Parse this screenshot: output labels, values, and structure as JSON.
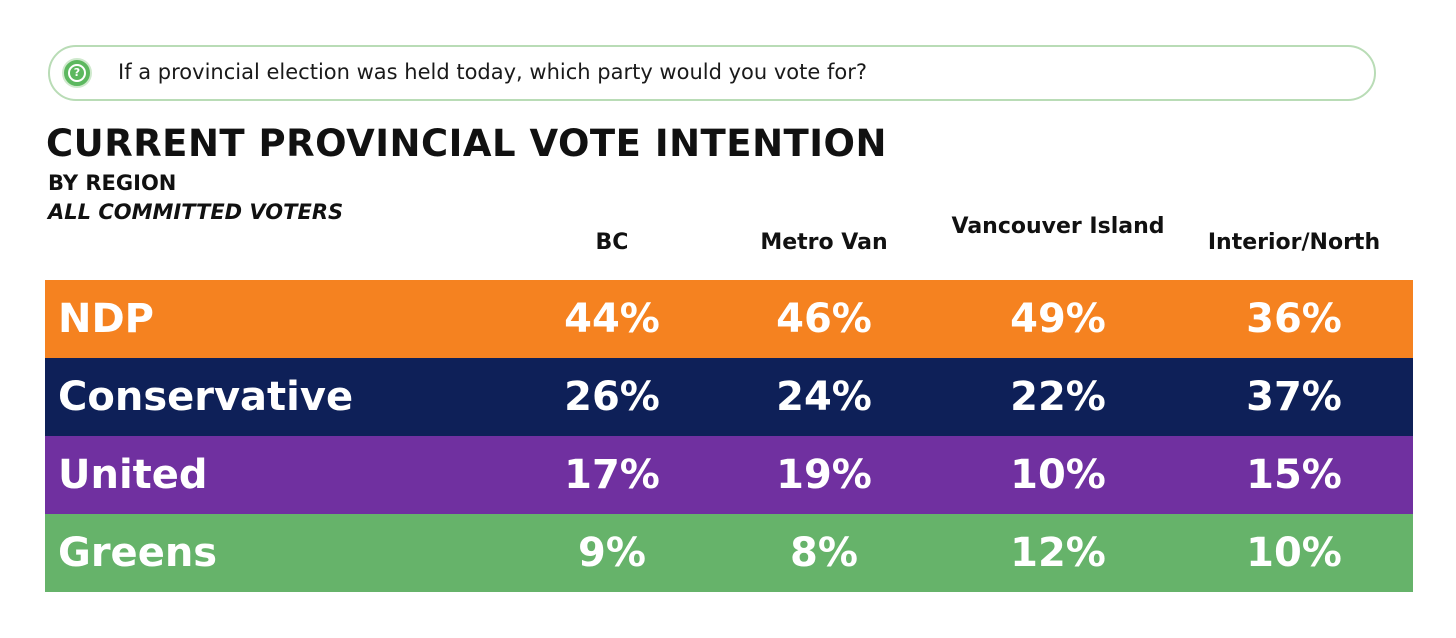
{
  "question": {
    "icon": "question-icon",
    "icon_glyph": "?",
    "text": "If a provincial election was held today, which party would you vote for?"
  },
  "chart_data": {
    "type": "table",
    "title": "CURRENT PROVINCIAL VOTE INTENTION",
    "subtitle": "BY REGION",
    "subtitle2": "ALL COMMITTED VOTERS",
    "columns": [
      "BC",
      "Metro Van",
      "Vancouver Island",
      "Interior/North"
    ],
    "rows": [
      {
        "party": "NDP",
        "color": "#f58220",
        "values": [
          "44%",
          "46%",
          "49%",
          "36%"
        ]
      },
      {
        "party": "Conservative",
        "color": "#0e2058",
        "values": [
          "26%",
          "24%",
          "22%",
          "37%"
        ]
      },
      {
        "party": "United",
        "color": "#7030a0",
        "values": [
          "17%",
          "19%",
          "10%",
          "15%"
        ]
      },
      {
        "party": "Greens",
        "color": "#66b36a",
        "values": [
          "9%",
          "8%",
          "12%",
          "10%"
        ]
      }
    ]
  },
  "colors": {
    "question_border": "#b9dcb6",
    "question_icon": "#5cb85f"
  }
}
